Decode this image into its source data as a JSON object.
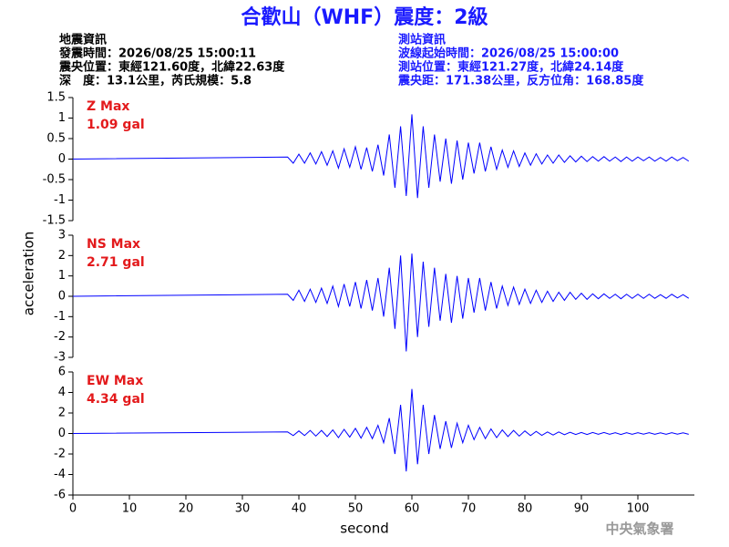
{
  "header": {
    "title": "合歡山（WHF）震度：2級",
    "left": [
      "地震資訊",
      "發震時間：2026/08/25 15:00:11",
      "震央位置：東經121.60度，北緯22.63度",
      "深　度：13.1公里，芮氏規模：5.8"
    ],
    "right": [
      "測站資訊",
      "波線起始時間：2026/08/25 15:00:00",
      "測站位置：東經121.27度，北緯24.14度",
      "震央距：171.38公里，反方位角：168.85度"
    ]
  },
  "y_label": "acceleration",
  "x_label": "second",
  "watermark": "中央氣象署",
  "chart_data": [
    {
      "type": "line",
      "label": "Z Max",
      "max_label": "1.09 gal",
      "xlim": [
        0,
        110
      ],
      "ylim": [
        -1.5,
        1.5
      ],
      "yticks": [
        -1.5,
        -1,
        -0.5,
        0,
        0.5,
        1,
        1.5
      ],
      "x": [
        0,
        38,
        39,
        40,
        41,
        42,
        43,
        44,
        45,
        46,
        47,
        48,
        49,
        50,
        51,
        52,
        53,
        54,
        55,
        56,
        57,
        58,
        59,
        60,
        61,
        62,
        63,
        64,
        65,
        66,
        67,
        68,
        69,
        70,
        71,
        72,
        73,
        74,
        75,
        76,
        77,
        78,
        79,
        80,
        81,
        82,
        83,
        84,
        85,
        86,
        87,
        88,
        89,
        90,
        91,
        92,
        93,
        94,
        95,
        96,
        97,
        98,
        99,
        100,
        101,
        102,
        103,
        104,
        105,
        106,
        107,
        108,
        109
      ],
      "series": [
        {
          "color": "#0000ff",
          "values": [
            0,
            0.05,
            -0.1,
            0.12,
            -0.1,
            0.15,
            -0.12,
            0.18,
            -0.15,
            0.2,
            -0.22,
            0.25,
            -0.2,
            0.3,
            -0.25,
            0.28,
            -0.3,
            0.35,
            -0.4,
            0.6,
            -0.7,
            0.8,
            -0.9,
            1.09,
            -0.95,
            0.8,
            -0.7,
            0.6,
            -0.55,
            0.5,
            -0.6,
            0.45,
            -0.5,
            0.4,
            -0.35,
            0.4,
            -0.3,
            0.3,
            -0.25,
            0.22,
            -0.2,
            0.2,
            -0.18,
            0.15,
            -0.15,
            0.13,
            -0.12,
            0.1,
            -0.1,
            0.1,
            -0.08,
            0.08,
            -0.07,
            0.07,
            -0.06,
            0.06,
            -0.05,
            0.06,
            -0.05,
            0.05,
            -0.06,
            0.05,
            -0.05,
            0.05,
            -0.04,
            0.05,
            -0.05,
            0.04,
            -0.05,
            0.05,
            -0.04,
            0.04,
            -0.05
          ]
        }
      ]
    },
    {
      "type": "line",
      "label": "NS Max",
      "max_label": "2.71 gal",
      "xlim": [
        0,
        110
      ],
      "ylim": [
        -3,
        3
      ],
      "yticks": [
        -3,
        -2,
        -1,
        0,
        1,
        2,
        3
      ],
      "x": [
        0,
        38,
        39,
        40,
        41,
        42,
        43,
        44,
        45,
        46,
        47,
        48,
        49,
        50,
        51,
        52,
        53,
        54,
        55,
        56,
        57,
        58,
        59,
        60,
        61,
        62,
        63,
        64,
        65,
        66,
        67,
        68,
        69,
        70,
        71,
        72,
        73,
        74,
        75,
        76,
        77,
        78,
        79,
        80,
        81,
        82,
        83,
        84,
        85,
        86,
        87,
        88,
        89,
        90,
        91,
        92,
        93,
        94,
        95,
        96,
        97,
        98,
        99,
        100,
        101,
        102,
        103,
        104,
        105,
        106,
        107,
        108,
        109
      ],
      "series": [
        {
          "color": "#0000ff",
          "values": [
            0,
            0.1,
            -0.2,
            0.3,
            -0.25,
            0.35,
            -0.3,
            0.4,
            -0.35,
            0.5,
            -0.5,
            0.6,
            -0.5,
            0.7,
            -0.6,
            0.8,
            -0.7,
            0.9,
            -1.0,
            1.4,
            -1.6,
            2.0,
            -2.71,
            2.1,
            -2.0,
            1.7,
            -1.5,
            1.4,
            -1.2,
            1.1,
            -1.3,
            1.0,
            -1.1,
            0.9,
            -0.8,
            0.9,
            -0.7,
            0.7,
            -0.6,
            0.5,
            -0.45,
            0.45,
            -0.4,
            0.35,
            -0.35,
            0.3,
            -0.3,
            0.25,
            -0.25,
            0.2,
            -0.2,
            0.2,
            -0.15,
            0.15,
            -0.15,
            0.12,
            -0.12,
            0.12,
            -0.1,
            0.1,
            -0.12,
            0.1,
            -0.1,
            0.1,
            -0.1,
            0.1,
            -0.1,
            0.08,
            -0.1,
            0.1,
            -0.08,
            0.08,
            -0.1
          ]
        }
      ]
    },
    {
      "type": "line",
      "label": "EW Max",
      "max_label": "4.34 gal",
      "xlim": [
        0,
        110
      ],
      "ylim": [
        -6,
        6
      ],
      "yticks": [
        -6,
        -4,
        -2,
        0,
        2,
        4,
        6
      ],
      "xticks": [
        0,
        10,
        20,
        30,
        40,
        50,
        60,
        70,
        80,
        90,
        100
      ],
      "x": [
        0,
        38,
        39,
        40,
        41,
        42,
        43,
        44,
        45,
        46,
        47,
        48,
        49,
        50,
        51,
        52,
        53,
        54,
        55,
        56,
        57,
        58,
        59,
        60,
        61,
        62,
        63,
        64,
        65,
        66,
        67,
        68,
        69,
        70,
        71,
        72,
        73,
        74,
        75,
        76,
        77,
        78,
        79,
        80,
        81,
        82,
        83,
        84,
        85,
        86,
        87,
        88,
        89,
        90,
        91,
        92,
        93,
        94,
        95,
        96,
        97,
        98,
        99,
        100,
        101,
        102,
        103,
        104,
        105,
        106,
        107,
        108,
        109
      ],
      "series": [
        {
          "color": "#0000ff",
          "values": [
            0,
            0.15,
            -0.2,
            0.25,
            -0.2,
            0.3,
            -0.25,
            0.3,
            -0.3,
            0.35,
            -0.4,
            0.4,
            -0.35,
            0.5,
            -0.45,
            0.6,
            -0.5,
            0.8,
            -0.9,
            1.5,
            -2.0,
            2.8,
            -3.7,
            4.34,
            -3.0,
            2.8,
            -2.0,
            1.8,
            -1.5,
            1.2,
            -1.4,
            1.0,
            -0.9,
            0.8,
            -0.6,
            0.6,
            -0.5,
            0.45,
            -0.4,
            0.35,
            -0.3,
            0.3,
            -0.25,
            0.25,
            -0.2,
            0.2,
            -0.18,
            0.15,
            -0.15,
            0.15,
            -0.12,
            0.12,
            -0.1,
            0.1,
            -0.1,
            0.1,
            -0.08,
            0.1,
            -0.08,
            0.08,
            -0.1,
            0.08,
            -0.08,
            0.08,
            -0.07,
            0.08,
            -0.08,
            0.07,
            -0.08,
            0.08,
            -0.07,
            0.07,
            -0.08
          ]
        }
      ]
    }
  ]
}
